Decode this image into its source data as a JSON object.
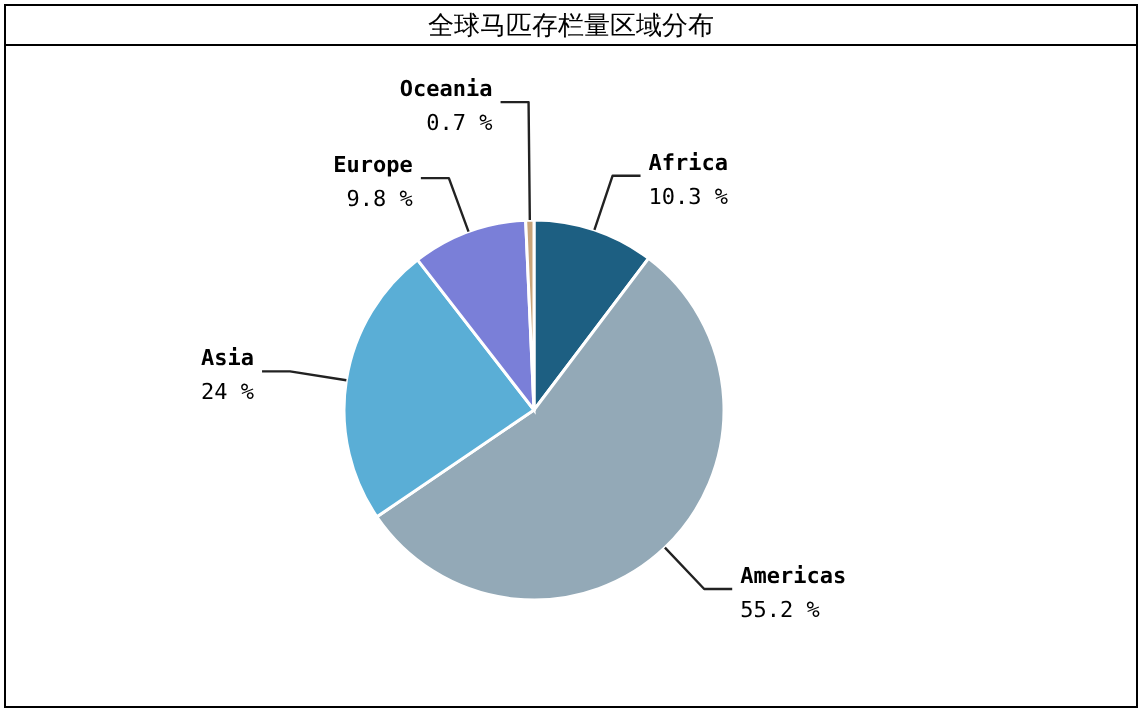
{
  "chart_data": {
    "type": "pie",
    "title": "全球马匹存栏量区域分布",
    "categories": [
      "Africa",
      "Americas",
      "Asia",
      "Europe",
      "Oceania"
    ],
    "values": [
      10.3,
      55.2,
      24,
      9.8,
      0.7
    ],
    "value_labels": [
      "10.3 %",
      "55.2 %",
      "24 %",
      "9.8 %",
      "0.7 %"
    ],
    "colors": [
      "#1d5f82",
      "#93a9b7",
      "#5aaed6",
      "#7a7fd8",
      "#c9a57a"
    ]
  }
}
